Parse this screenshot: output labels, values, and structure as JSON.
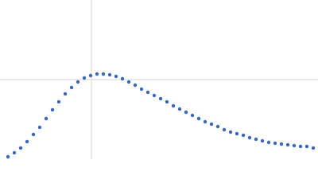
{
  "chart_data": {
    "type": "scatter",
    "color": "#3c67b1",
    "x": [
      10,
      18,
      26,
      34,
      42,
      50,
      58,
      66,
      74,
      82,
      90,
      98,
      106,
      114,
      122,
      130,
      138,
      146,
      154,
      162,
      170,
      178,
      186,
      194,
      202,
      210,
      218,
      226,
      234,
      242,
      250,
      258,
      266,
      274,
      282,
      290,
      298,
      306,
      314,
      322,
      330,
      338,
      346,
      354,
      362,
      370,
      378,
      386,
      394
    ],
    "values": [
      3,
      8,
      14,
      22,
      31,
      40,
      51,
      62,
      72,
      82,
      90,
      97,
      102,
      105,
      107,
      107,
      106,
      104,
      101,
      97,
      93,
      88,
      84,
      80,
      76,
      72,
      67,
      63,
      59,
      55,
      51,
      47,
      44,
      41,
      37,
      34,
      32,
      30,
      27,
      25,
      23,
      21,
      20,
      19,
      18,
      17,
      16,
      16,
      14
    ],
    "xlim": [
      0,
      400
    ],
    "ylim": [
      0,
      200
    ],
    "xgrid": [
      115
    ],
    "ygrid": [
      100
    ],
    "grid": true
  }
}
